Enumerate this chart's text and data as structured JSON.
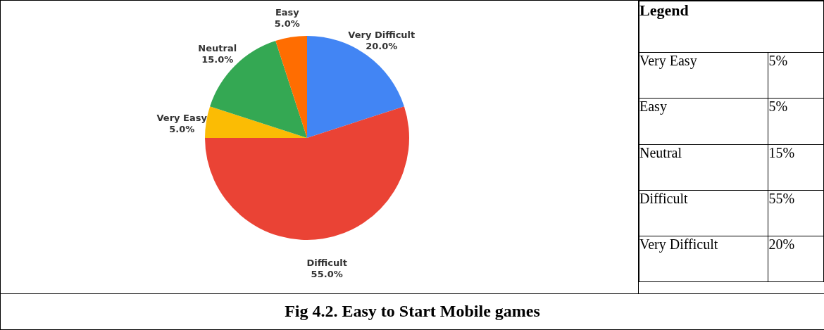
{
  "chart_data": {
    "type": "pie",
    "title": "Fig 4.2. Easy to Start Mobile games",
    "legend_title": "Legend",
    "categories": [
      "Very Difficult",
      "Difficult",
      "Very Easy",
      "Neutral",
      "Easy"
    ],
    "values": [
      20,
      55,
      5,
      15,
      5
    ],
    "colors": [
      "#4285f4",
      "#ea4335",
      "#fbbc04",
      "#34a853",
      "#ff6d01"
    ],
    "value_labels": [
      "20.0%",
      "55.0%",
      "5.0%",
      "15.0%",
      "5.0%"
    ],
    "annotations": [
      "Very Easy",
      "5%",
      "Easy",
      "5%",
      "Neutral",
      "15%",
      "Difficult",
      "55%",
      "Very Difficult",
      "20%"
    ]
  }
}
